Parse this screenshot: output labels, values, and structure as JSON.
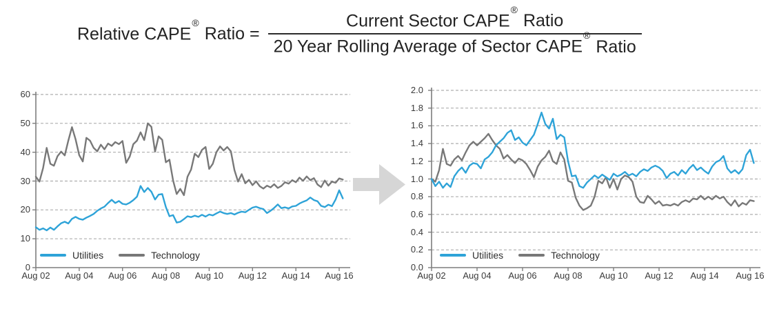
{
  "formula": {
    "lhs_main": "Relative CAPE",
    "registered": "®",
    "lhs_tail": "Ratio =",
    "numerator_main": "Current Sector CAPE",
    "numerator_tail": "Ratio",
    "denominator_main": "20 Year Rolling Average of Sector CAPE",
    "denominator_tail": "Ratio"
  },
  "colors": {
    "utilities": "#2EA3D8",
    "technology": "#787878",
    "grid": "#ADADAD",
    "axis": "#7D7D7D",
    "arrow": "#D6D6D6",
    "tick_text": "#3A3A3A"
  },
  "chart_data": [
    {
      "type": "line",
      "title": "",
      "x_start": "Aug 02",
      "x_end": "Aug 16",
      "sample_step_months": 2,
      "ylim": [
        0,
        60
      ],
      "grid": "dashed-horizontal",
      "legend_position": "inside-bottom-left",
      "yticks": [
        {
          "v": 0,
          "label": "0"
        },
        {
          "v": 10,
          "label": "10"
        },
        {
          "v": 20,
          "label": "20"
        },
        {
          "v": 30,
          "label": "30"
        },
        {
          "v": 40,
          "label": "40"
        },
        {
          "v": 50,
          "label": "50"
        },
        {
          "v": 60,
          "label": "60"
        }
      ],
      "xticks": [
        {
          "year": 0,
          "label": "Aug 02"
        },
        {
          "year": 2,
          "label": "Aug 04"
        },
        {
          "year": 4,
          "label": "Aug 06"
        },
        {
          "year": 6,
          "label": "Aug 08"
        },
        {
          "year": 8,
          "label": "Aug 10"
        },
        {
          "year": 10,
          "label": "Aug 12"
        },
        {
          "year": 12,
          "label": "Aug 14"
        },
        {
          "year": 14,
          "label": "Aug 16"
        }
      ],
      "series": [
        {
          "name": "Utilities",
          "color": "#2EA3D8",
          "values": [
            14.0,
            13.1,
            13.6,
            12.9,
            13.9,
            13.1,
            14.3,
            15.4,
            15.9,
            15.3,
            16.9,
            17.6,
            16.9,
            16.6,
            17.3,
            17.9,
            18.6,
            19.7,
            20.5,
            21.1,
            22.4,
            23.5,
            22.4,
            23.1,
            22.1,
            21.9,
            22.5,
            23.4,
            24.6,
            28.3,
            26.2,
            27.6,
            26.3,
            23.6,
            25.3,
            25.5,
            21.0,
            17.8,
            18.2,
            15.6,
            15.9,
            16.8,
            17.8,
            17.5,
            18.0,
            17.6,
            18.3,
            17.7,
            18.4,
            18.1,
            18.8,
            19.4,
            18.9,
            18.6,
            18.9,
            18.4,
            19.0,
            19.4,
            19.2,
            20.0,
            20.8,
            21.1,
            20.6,
            20.3,
            18.9,
            19.7,
            20.7,
            21.9,
            20.6,
            20.9,
            20.5,
            21.2,
            21.4,
            22.2,
            22.8,
            23.3,
            24.3,
            23.4,
            23.0,
            21.4,
            21.0,
            21.8,
            21.3,
            23.6,
            26.8,
            24.0
          ]
        },
        {
          "name": "Technology",
          "color": "#787878",
          "values": [
            31.5,
            29.8,
            34.5,
            41.5,
            36.0,
            35.3,
            38.6,
            40.2,
            38.9,
            44.0,
            48.7,
            44.5,
            39.0,
            36.8,
            45.0,
            44.0,
            41.5,
            40.3,
            42.6,
            41.0,
            43.0,
            42.2,
            43.5,
            42.8,
            43.9,
            36.3,
            38.5,
            42.8,
            44.0,
            46.9,
            44.2,
            50.0,
            48.8,
            40.2,
            45.5,
            44.3,
            36.5,
            37.4,
            30.2,
            25.5,
            27.3,
            25.1,
            31.5,
            34.0,
            39.5,
            38.3,
            40.8,
            41.8,
            34.2,
            36.0,
            40.0,
            42.0,
            40.6,
            41.8,
            40.3,
            33.8,
            29.8,
            32.4,
            29.2,
            30.4,
            28.6,
            29.9,
            28.2,
            27.4,
            28.4,
            27.8,
            28.9,
            27.6,
            28.3,
            29.6,
            29.1,
            30.3,
            29.6,
            31.2,
            30.1,
            31.6,
            30.3,
            31.0,
            28.8,
            27.9,
            30.2,
            28.4,
            29.8,
            29.4,
            30.9,
            30.5
          ]
        }
      ]
    },
    {
      "type": "line",
      "title": "",
      "x_start": "Aug 02",
      "x_end": "Aug 16",
      "sample_step_months": 2,
      "ylim": [
        0,
        2.0
      ],
      "grid": "dashed-horizontal",
      "legend_position": "inside-bottom-left",
      "yticks": [
        {
          "v": 0.0,
          "label": "0.0"
        },
        {
          "v": 0.2,
          "label": "0.2"
        },
        {
          "v": 0.4,
          "label": "0.4"
        },
        {
          "v": 0.6,
          "label": "0.6"
        },
        {
          "v": 0.8,
          "label": "0.8"
        },
        {
          "v": 1.0,
          "label": "1.0"
        },
        {
          "v": 1.2,
          "label": "1.2"
        },
        {
          "v": 1.4,
          "label": "1.4"
        },
        {
          "v": 1.6,
          "label": "1.6"
        },
        {
          "v": 1.8,
          "label": "1.8"
        },
        {
          "v": 2.0,
          "label": "2.0"
        }
      ],
      "xticks": [
        {
          "year": 0,
          "label": "Aug 02"
        },
        {
          "year": 2,
          "label": "Aug 04"
        },
        {
          "year": 4,
          "label": "Aug 06"
        },
        {
          "year": 6,
          "label": "Aug 08"
        },
        {
          "year": 8,
          "label": "Aug 10"
        },
        {
          "year": 10,
          "label": "Aug 12"
        },
        {
          "year": 12,
          "label": "Aug 14"
        },
        {
          "year": 14,
          "label": "Aug 16"
        }
      ],
      "series": [
        {
          "name": "Utilities",
          "color": "#2EA3D8",
          "values": [
            1.0,
            0.92,
            0.97,
            0.9,
            0.95,
            0.91,
            1.03,
            1.09,
            1.13,
            1.07,
            1.15,
            1.18,
            1.17,
            1.12,
            1.22,
            1.25,
            1.3,
            1.38,
            1.42,
            1.46,
            1.52,
            1.55,
            1.44,
            1.47,
            1.41,
            1.38,
            1.44,
            1.5,
            1.62,
            1.75,
            1.62,
            1.57,
            1.68,
            1.45,
            1.5,
            1.47,
            1.2,
            1.03,
            1.04,
            0.92,
            0.9,
            0.96,
            1.0,
            1.04,
            1.01,
            1.05,
            1.02,
            0.99,
            1.06,
            1.03,
            1.05,
            1.08,
            1.04,
            1.06,
            1.03,
            1.08,
            1.11,
            1.09,
            1.13,
            1.15,
            1.13,
            1.09,
            1.01,
            1.06,
            1.08,
            1.04,
            1.1,
            1.06,
            1.12,
            1.16,
            1.1,
            1.13,
            1.09,
            1.06,
            1.14,
            1.19,
            1.21,
            1.26,
            1.12,
            1.07,
            1.1,
            1.06,
            1.11,
            1.27,
            1.33,
            1.18
          ]
        },
        {
          "name": "Technology",
          "color": "#787878",
          "values": [
            1.0,
            0.97,
            1.1,
            1.34,
            1.17,
            1.15,
            1.22,
            1.26,
            1.21,
            1.3,
            1.38,
            1.42,
            1.38,
            1.42,
            1.46,
            1.51,
            1.44,
            1.38,
            1.34,
            1.23,
            1.27,
            1.22,
            1.18,
            1.23,
            1.21,
            1.17,
            1.1,
            1.02,
            1.14,
            1.21,
            1.25,
            1.32,
            1.2,
            1.17,
            1.3,
            1.22,
            0.98,
            0.96,
            0.79,
            0.7,
            0.65,
            0.67,
            0.7,
            0.8,
            0.98,
            0.95,
            1.02,
            0.9,
            1.0,
            0.88,
            1.0,
            1.04,
            1.02,
            0.97,
            0.8,
            0.74,
            0.73,
            0.81,
            0.77,
            0.72,
            0.75,
            0.7,
            0.71,
            0.7,
            0.72,
            0.7,
            0.74,
            0.76,
            0.74,
            0.78,
            0.77,
            0.81,
            0.77,
            0.8,
            0.77,
            0.81,
            0.78,
            0.8,
            0.74,
            0.7,
            0.76,
            0.69,
            0.73,
            0.71,
            0.76,
            0.75
          ]
        }
      ]
    }
  ]
}
